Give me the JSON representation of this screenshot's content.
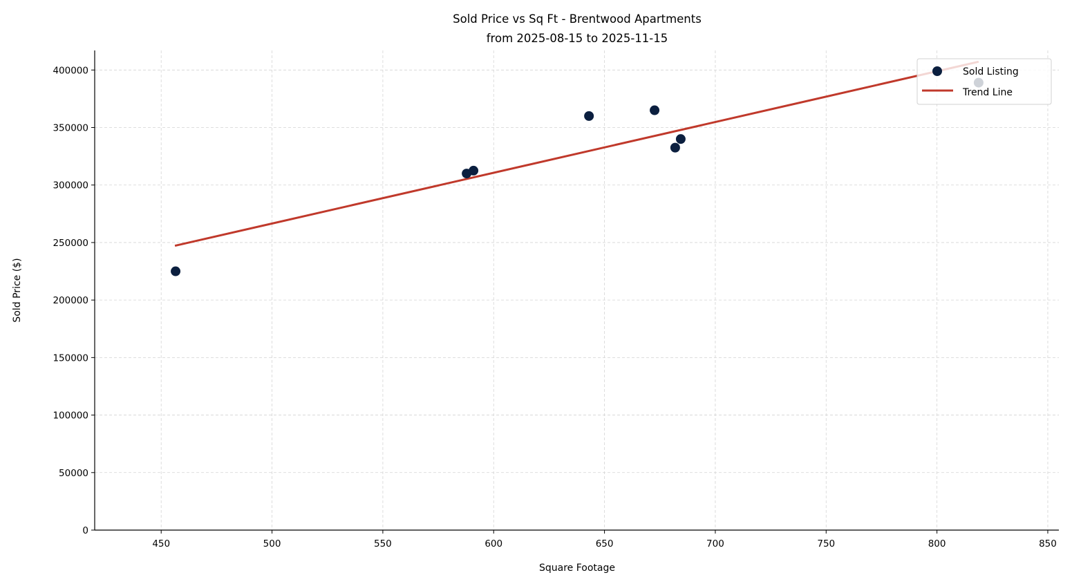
{
  "chart_data": {
    "type": "scatter",
    "title": "Sold Price vs Sq Ft - Brentwood Apartments",
    "subtitle": "from 2025-08-15 to 2025-11-15",
    "xlabel": "Square Footage",
    "ylabel": "Sold Price ($)",
    "xlim": [
      420,
      855
    ],
    "ylim": [
      0,
      417000
    ],
    "xticks": [
      450,
      500,
      550,
      600,
      650,
      700,
      750,
      800,
      850
    ],
    "yticks": [
      0,
      50000,
      100000,
      150000,
      200000,
      250000,
      300000,
      350000,
      400000
    ],
    "grid": true,
    "legend_position": "top-right",
    "series": [
      {
        "name": "Sold Listing",
        "kind": "scatter",
        "color": "#0b1f3f",
        "points": [
          {
            "x": 456.5,
            "y": 225000
          },
          {
            "x": 587.8,
            "y": 310000
          },
          {
            "x": 590.9,
            "y": 312500
          },
          {
            "x": 643.0,
            "y": 360000
          },
          {
            "x": 672.6,
            "y": 365000
          },
          {
            "x": 681.9,
            "y": 332500
          },
          {
            "x": 684.4,
            "y": 340000
          },
          {
            "x": 818.8,
            "y": 389000
          }
        ]
      },
      {
        "name": "Trend Line",
        "kind": "line",
        "color": "#c0392b",
        "points": [
          {
            "x": 456.2,
            "y": 247200
          },
          {
            "x": 818.8,
            "y": 407200
          }
        ]
      }
    ]
  }
}
